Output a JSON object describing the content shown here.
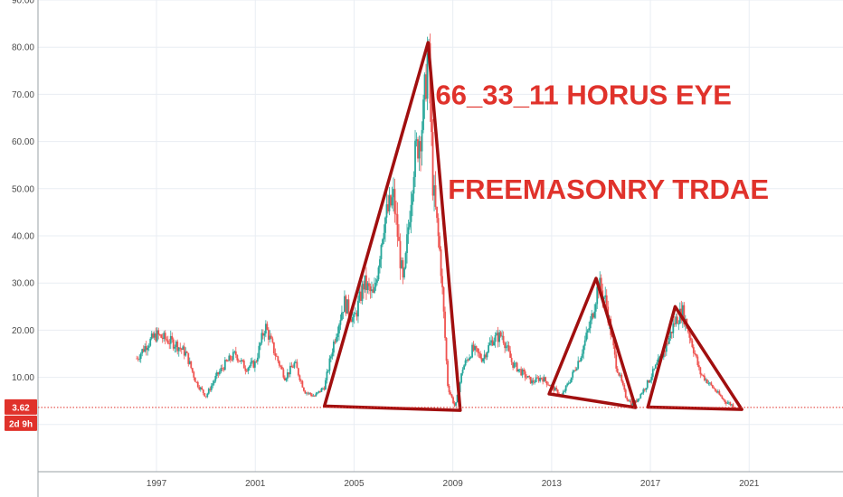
{
  "chart_data": {
    "type": "line",
    "x": [
      1996.2,
      1996.6,
      1997.0,
      1997.4,
      1997.8,
      1998.2,
      1998.6,
      1999.0,
      1999.4,
      1999.8,
      2000.2,
      2000.6,
      2001.0,
      2001.4,
      2001.8,
      2002.2,
      2002.6,
      2003.0,
      2003.4,
      2003.8,
      2004.2,
      2004.6,
      2005.0,
      2005.4,
      2005.8,
      2006.2,
      2006.6,
      2007.0,
      2007.4,
      2007.8,
      2008.0,
      2008.2,
      2008.5,
      2008.8,
      2009.1,
      2009.4,
      2009.8,
      2010.2,
      2010.6,
      2011.0,
      2011.4,
      2011.8,
      2012.2,
      2012.6,
      2013.0,
      2013.4,
      2013.8,
      2014.2,
      2014.6,
      2014.9,
      2015.2,
      2015.6,
      2016.0,
      2016.3,
      2016.8,
      2017.2,
      2017.6,
      2018.0,
      2018.3,
      2018.7,
      2019.0,
      2019.5,
      2020.0,
      2020.5
    ],
    "y": [
      14,
      17,
      19,
      18,
      17,
      15,
      9,
      6,
      10,
      13,
      15,
      12,
      13,
      21,
      15,
      10,
      13,
      7,
      6,
      8,
      18,
      26,
      22,
      30,
      27,
      43,
      48,
      29,
      55,
      65,
      80,
      50,
      35,
      8,
      3.6,
      12,
      16,
      14,
      18,
      19,
      13,
      11,
      9,
      10,
      8,
      6,
      10,
      15,
      22,
      30,
      26,
      13,
      6,
      4,
      8,
      12,
      16,
      22,
      24,
      17,
      11,
      8,
      5,
      3.6
    ],
    "title": "",
    "xlabel": "",
    "ylabel": "",
    "x_ticks": [
      "1997",
      "2001",
      "2005",
      "2009",
      "2013",
      "2017",
      "2021"
    ],
    "y_ticks": [
      "0.00",
      "10.00",
      "20.00",
      "30.00",
      "40.00",
      "50.00",
      "60.00",
      "70.00",
      "80.00",
      "90.00"
    ],
    "ylim": [
      -10,
      90
    ],
    "xlim": [
      1992.2,
      2024.8
    ],
    "grid": true,
    "colors": {
      "up": "#26a69a",
      "down": "#ef5350",
      "triangle": "#a10f0f",
      "annotation": "#e0322b",
      "price_line": "#e0322b"
    },
    "last_price": 3.62,
    "last_price_label": "3.62",
    "countdown_label": "2d 9h",
    "triangles": [
      [
        [
          2003.8,
          3.9
        ],
        [
          2008.0,
          81
        ],
        [
          2009.3,
          3.0
        ]
      ],
      [
        [
          2012.9,
          6.5
        ],
        [
          2014.8,
          31
        ],
        [
          2016.4,
          3.6
        ]
      ],
      [
        [
          2016.9,
          3.7
        ],
        [
          2018.0,
          25
        ],
        [
          2020.7,
          3.2
        ]
      ]
    ],
    "annotations": [
      {
        "text": "66_33_11 HORUS EYE",
        "x": 2008.3,
        "y": 70
      },
      {
        "text": "FREEMASONRY TRDAE",
        "x": 2008.8,
        "y": 50
      }
    ]
  }
}
